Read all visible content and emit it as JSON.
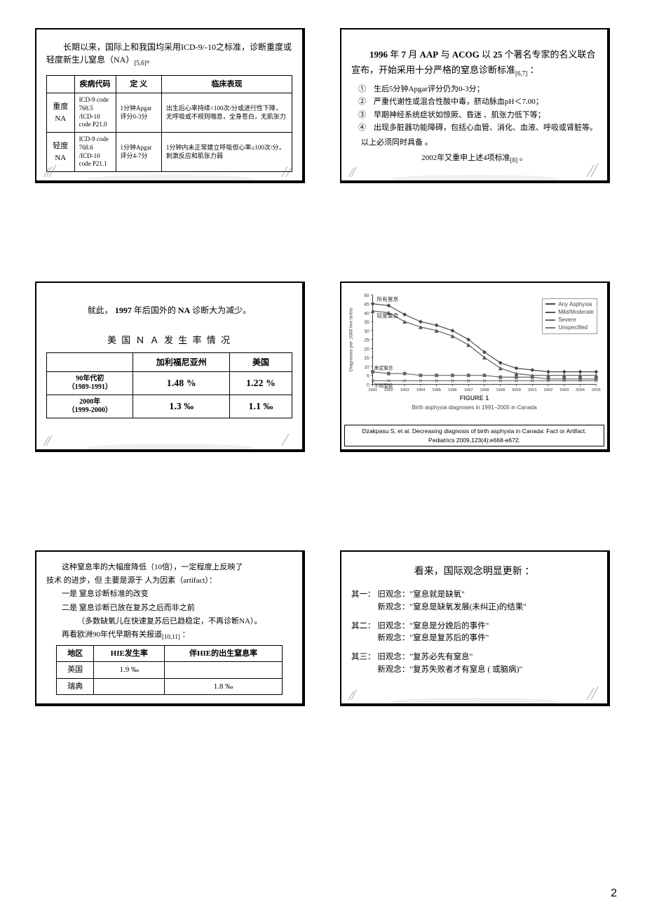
{
  "page_number": "2",
  "slide1": {
    "intro": "长期以来，国际上和我国均采用ICD-9/-10之标准，诊断重度或轻度新生儿窒息（NA）",
    "intro_ref": "[5,6]",
    "headers": [
      "",
      "疾病代码",
      "定 义",
      "临床表现"
    ],
    "rows": [
      {
        "label": "重度NA",
        "code": "ICD-9 code 768.5\n/ICD-10 code P21.0",
        "def": "1分钟Apgar评分0-3分",
        "clin": "出生后心率持续<100次/分或进行性下降，无呼吸或不规则喘息，全身苍白，无肌张力"
      },
      {
        "label": "轻度NA",
        "code": "ICD-9 code 768.6\n/ICD-10 code P21.1",
        "def": "1分钟Apgar评分4-7分",
        "clin": "1分钟内未正常建立呼吸但心率≥100次/分，刺激反应和肌张力弱"
      }
    ]
  },
  "slide2": {
    "title_parts": [
      "1996",
      "年",
      "7",
      "月",
      "AAP",
      "与",
      "ACOG",
      "以",
      "25",
      "个著名专家的名义联合宣布，开始采用十分严格的窒息诊断标准"
    ],
    "title_ref": "[6,7]",
    "items": [
      "生后5分钟Apgar评分仍为0-3分；",
      "严重代谢性或混合性酸中毒，脐动脉血pH＜7.00；",
      "早期神经系统症状如惊厥、昏迷 、肌张力低下等；",
      "出现多脏器功能障碍，包括心血管、消化、血液、呼吸或肾脏等。"
    ],
    "markers": [
      "①",
      "②",
      "③",
      "④"
    ],
    "note": "以上必须同时具备 。",
    "footer": "2002年又重申上述4项标准",
    "footer_ref": "[8]"
  },
  "slide3": {
    "line1_a": "就此，",
    "line1_b": "1997",
    "line1_c": "年后国外的",
    "line1_d": "NA",
    "line1_e": "诊断大为减少。",
    "title": "美 国 Ｎ Ａ 发 生 率 情 况",
    "col_headers": [
      "",
      "加利福尼亚州",
      "美国"
    ],
    "rows": [
      {
        "h1": "90",
        "h2": "年代初",
        "h3": "（",
        "h4": "1989-1991",
        "h5": "）",
        "v1": "1.48 %",
        "v2": "1.22 %"
      },
      {
        "h1": "2000",
        "h2": "年",
        "h3": "（",
        "h4": "1999-2000",
        "h5": "）",
        "v1": "1.3 ‰",
        "v2": "1.1 ‰"
      }
    ]
  },
  "slide4": {
    "y_ticks": [
      "50",
      "45",
      "40",
      "35",
      "30",
      "25",
      "20",
      "15",
      "10",
      "5",
      "0"
    ],
    "x_ticks": [
      "1991",
      "1992",
      "1993",
      "1994",
      "1995",
      "1996",
      "1997",
      "1998",
      "1999",
      "2000",
      "2001",
      "2002",
      "2003",
      "2004",
      "2005"
    ],
    "y_label": "Diagnoses per 1000 live births",
    "series": [
      {
        "name": "Any Asphyxia",
        "zh": "所有窒息",
        "marker": "diamond",
        "color": "#444",
        "data": [
          45,
          44,
          39,
          35,
          33,
          30,
          25,
          18,
          12,
          9,
          8,
          7,
          7,
          7,
          7
        ]
      },
      {
        "name": "Mild/Moderate",
        "zh": "轻度窒息",
        "marker": "triangle",
        "color": "#555",
        "data": [
          41,
          40,
          35,
          32,
          30,
          27,
          22,
          15,
          9,
          6,
          5,
          5,
          5,
          5,
          5
        ]
      },
      {
        "name": "Severe",
        "zh": "重度窒息",
        "marker": "square",
        "color": "#666",
        "data": [
          7,
          6,
          6,
          5,
          5,
          5,
          5,
          5,
          4,
          4,
          4,
          3,
          3,
          3,
          3
        ]
      },
      {
        "name": "Unspecified",
        "zh": "不明窒息",
        "marker": "x",
        "color": "#777",
        "data": [
          2,
          2,
          2,
          2,
          2,
          2,
          2,
          2,
          2,
          2,
          2,
          2,
          2,
          2,
          2
        ]
      }
    ],
    "fig_num": "FIGURE 1",
    "fig_title": "Birth asphyxia diagnoses in 1991–2005 in Canada",
    "cite1": "Dzakpasu S, et al.    Decreasing diagnosis of birth asphyxia in Canada: Fact or Artifact.",
    "cite2": "Pediatrics 2009,123(4):e668-e672."
  },
  "slide5": {
    "p1": "这种窒息率的大幅度降低（10倍），一定程度上反映了",
    "p2": "技术 的进步，但 主要是源于 人为因素（artifact）：",
    "p3": "一是 窒息诊断标准的改变",
    "p4": "二是 窒息诊断已放在复苏之后而非之前",
    "p5": "（多数缺氧儿在快速复苏后已趋稳定，不再诊断NA）。",
    "p6": "再看欧洲90年代早期有关报道",
    "p6_ref": "[10,11]",
    "headers": [
      "地区",
      "HIE发生率",
      "伴HIE的出生窒息率"
    ],
    "rows": [
      {
        "region": "英国",
        "hie": "1.9 ‰",
        "asph": ""
      },
      {
        "region": "瑞典",
        "hie": "",
        "asph": "1.8 ‰"
      }
    ]
  },
  "slide6": {
    "title": "看来，国际观念明显更新 ：",
    "blocks": [
      {
        "label": "其一：",
        "old": "旧观念：\"窒息就是缺氧\"",
        "new": "新观念：\"窒息是缺氧发展(未纠正)的结果\""
      },
      {
        "label": "其二：",
        "old": "旧观念：\"窒息是分娩后的事件\"",
        "new": "新观念：\"窒息是复苏后的事件\""
      },
      {
        "label": "其三：",
        "old": "旧观念：\"复苏必先有窒息\"",
        "new": "新观念：\"复苏失败者才有窒息 ( 或脑病)\""
      }
    ]
  }
}
